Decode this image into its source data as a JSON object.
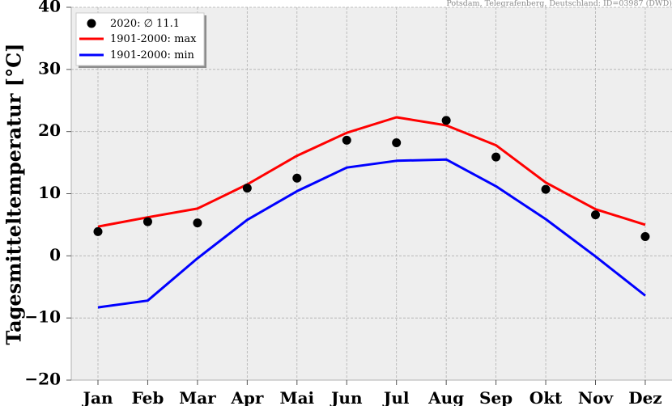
{
  "chart_data": {
    "type": "line",
    "source_note": "Potsdam, Telegrafenberg, Deutschland: ID=03987 (DWD)",
    "ylabel": "Tagesmitteltemperatur [°C]",
    "ylim": [
      -20,
      40
    ],
    "yticks": [
      -20,
      -10,
      0,
      10,
      20,
      30,
      40
    ],
    "ytick_labels": [
      "−20",
      "−10",
      "0",
      "10",
      "20",
      "30",
      "40"
    ],
    "categories": [
      "Jan",
      "Feb",
      "Mar",
      "Apr",
      "Mai",
      "Jun",
      "Jul",
      "Aug",
      "Sep",
      "Okt",
      "Nov",
      "Dez"
    ],
    "grid": true,
    "legend_position": "top-left",
    "background": "#eeeeee",
    "series": [
      {
        "name": "2020: ∅ 11.1",
        "kind": "scatter",
        "color": "#000000",
        "values": [
          3.9,
          5.5,
          5.3,
          10.9,
          12.5,
          18.6,
          18.2,
          21.8,
          15.9,
          10.7,
          6.6,
          3.1
        ]
      },
      {
        "name": "1901-2000: max",
        "kind": "line",
        "color": "#ff0000",
        "values": [
          4.7,
          6.2,
          7.6,
          11.5,
          16.1,
          19.8,
          22.3,
          21.0,
          17.8,
          11.8,
          7.5,
          5.0
        ]
      },
      {
        "name": "1901-2000: min",
        "kind": "line",
        "color": "#0000ff",
        "values": [
          -8.3,
          -7.2,
          -0.4,
          5.8,
          10.4,
          14.2,
          15.3,
          15.5,
          11.2,
          5.9,
          -0.1,
          -6.4
        ]
      }
    ]
  }
}
